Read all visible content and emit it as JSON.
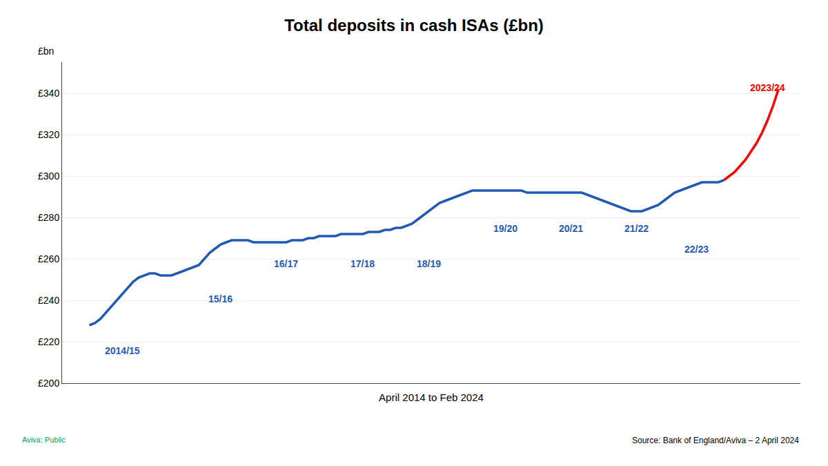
{
  "chart_data": {
    "type": "line",
    "title": "Total deposits in cash ISAs (£bn)",
    "ylabel": "£bn",
    "xlabel": "April 2014 to Feb 2024",
    "source": "Source: Bank of England/Aviva – 2 April 2024",
    "footnote": {
      "text": "Aviva: Public",
      "color": "#00a651"
    },
    "xlim": [
      -5,
      130
    ],
    "xticks": [],
    "ylim": [
      200,
      355
    ],
    "yticks": [
      {
        "value": 200,
        "label": "£200"
      },
      {
        "value": 220,
        "label": "£220"
      },
      {
        "value": 240,
        "label": "£240"
      },
      {
        "value": 260,
        "label": "£260"
      },
      {
        "value": 280,
        "label": "£280"
      },
      {
        "value": 300,
        "label": "£300"
      },
      {
        "value": 320,
        "label": "£320"
      },
      {
        "value": 340,
        "label": "£340"
      }
    ],
    "tick_labels": "y",
    "grid": true,
    "series": [
      {
        "color": "#1f5bb5",
        "x": [
          0,
          1,
          2,
          3,
          4,
          5,
          6,
          7,
          8,
          9,
          10,
          11,
          12,
          13,
          14,
          15,
          16,
          17,
          18,
          19,
          20,
          21,
          22,
          23,
          24,
          25,
          26,
          27,
          28,
          29,
          30,
          31,
          32,
          33,
          34,
          35,
          36,
          37,
          38,
          39,
          40,
          41,
          42,
          43,
          44,
          45,
          46,
          47,
          48,
          49,
          50,
          51,
          52,
          53,
          54,
          55,
          56,
          57,
          58,
          59,
          60,
          61,
          62,
          63,
          64,
          65,
          66,
          67,
          68,
          69,
          70,
          71,
          72,
          73,
          74,
          75,
          76,
          77,
          78,
          79,
          80,
          81,
          82,
          83,
          84,
          85,
          86,
          87,
          88,
          89,
          90,
          91,
          92,
          93,
          94,
          95,
          96,
          97,
          98,
          99,
          100,
          101,
          102,
          103,
          104,
          105,
          106,
          107,
          108,
          109,
          110,
          111,
          112,
          113,
          114,
          115,
          116
        ],
        "values": [
          228,
          229,
          231,
          234,
          237,
          240,
          243,
          246,
          249,
          251,
          252,
          253,
          253,
          252,
          252,
          252,
          253,
          254,
          255,
          256,
          257,
          260,
          263,
          265,
          267,
          268,
          269,
          269,
          269,
          269,
          268,
          268,
          268,
          268,
          268,
          268,
          268,
          269,
          269,
          269,
          270,
          270,
          271,
          271,
          271,
          271,
          272,
          272,
          272,
          272,
          272,
          273,
          273,
          273,
          274,
          274,
          275,
          275,
          276,
          277,
          279,
          281,
          283,
          285,
          287,
          288,
          289,
          290,
          291,
          292,
          293,
          293,
          293,
          293,
          293,
          293,
          293,
          293,
          293,
          293,
          292,
          292,
          292,
          292,
          292,
          292,
          292,
          292,
          292,
          292,
          292,
          291,
          290,
          289,
          288,
          287,
          286,
          285,
          284,
          283,
          283,
          283,
          284,
          285,
          286,
          288,
          290,
          292,
          293,
          294,
          295,
          296,
          297,
          297,
          297,
          297,
          298
        ]
      },
      {
        "color": "#ff0000",
        "x": [
          116,
          117,
          118,
          119,
          120,
          121,
          122,
          123,
          124,
          125,
          126
        ],
        "values": [
          298,
          300,
          302,
          305,
          308,
          312,
          316,
          321,
          327,
          334,
          342
        ]
      }
    ],
    "annotations": [
      {
        "text": "2014/15",
        "x": 6,
        "y": 219,
        "color": "#1f5bb5"
      },
      {
        "text": "15/16",
        "x": 24,
        "y": 244,
        "color": "#1f5bb5"
      },
      {
        "text": "16/17",
        "x": 36,
        "y": 261,
        "color": "#1f5bb5"
      },
      {
        "text": "17/18",
        "x": 50,
        "y": 261,
        "color": "#1f5bb5"
      },
      {
        "text": "18/19",
        "x": 62,
        "y": 261,
        "color": "#1f5bb5"
      },
      {
        "text": "19/20",
        "x": 76,
        "y": 278,
        "color": "#1f5bb5"
      },
      {
        "text": "20/21",
        "x": 88,
        "y": 278,
        "color": "#1f5bb5"
      },
      {
        "text": "21/22",
        "x": 100,
        "y": 278,
        "color": "#1f5bb5"
      },
      {
        "text": "22/23",
        "x": 111,
        "y": 268,
        "color": "#1f5bb5"
      },
      {
        "text": "2023/24",
        "x": 124,
        "y": 346,
        "color": "#ff0000"
      }
    ]
  }
}
